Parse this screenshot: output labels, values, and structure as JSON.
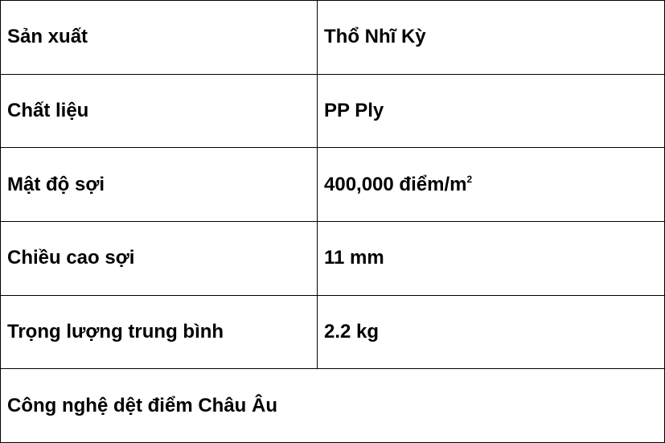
{
  "rows": [
    {
      "label": "Sản xuất",
      "value": "Thổ Nhĩ Kỳ"
    },
    {
      "label": "Chất liệu",
      "value": "PP Ply"
    },
    {
      "label": "Mật độ sợi",
      "value": "400,000 điểm/m",
      "value_sup": "2"
    },
    {
      "label": "Chiều cao sợi",
      "value": "11 mm"
    },
    {
      "label": "Trọng lượng trung bình",
      "value": "2.2 kg"
    }
  ],
  "footer": "Công nghệ dệt điểm Châu Âu"
}
